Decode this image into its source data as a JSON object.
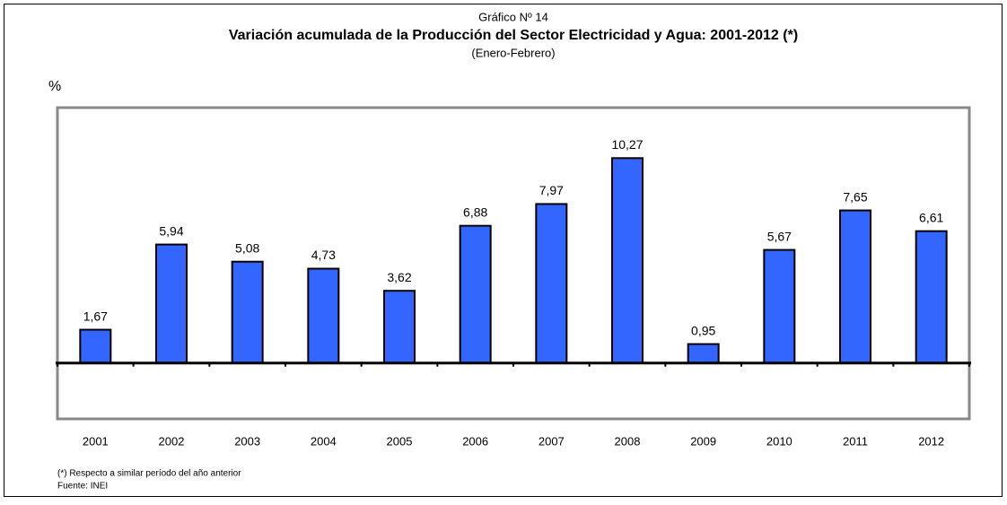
{
  "chart_data": {
    "type": "bar",
    "subtitle_top": "Gráfico Nº 14",
    "title": "Variación acumulada de la Producción del Sector Electricidad y Agua: 2001-2012 (*)",
    "subtitle": "(Enero-Febrero)",
    "y_label": "%",
    "categories": [
      "2001",
      "2002",
      "2003",
      "2004",
      "2005",
      "2006",
      "2007",
      "2008",
      "2009",
      "2010",
      "2011",
      "2012"
    ],
    "values": [
      1.67,
      5.94,
      5.08,
      4.73,
      3.62,
      6.88,
      7.97,
      10.27,
      0.95,
      5.67,
      7.65,
      6.61
    ],
    "value_labels": [
      "1,67",
      "5,94",
      "5,08",
      "4,73",
      "3,62",
      "6,88",
      "7,97",
      "10,27",
      "0,95",
      "5,67",
      "7,65",
      "6,61"
    ],
    "color": "#3366ff",
    "ylim": [
      -2.8,
      12.8
    ],
    "footnote": "(*) Respecto a similar período del año anterior",
    "source": "Fuente: INEI"
  }
}
